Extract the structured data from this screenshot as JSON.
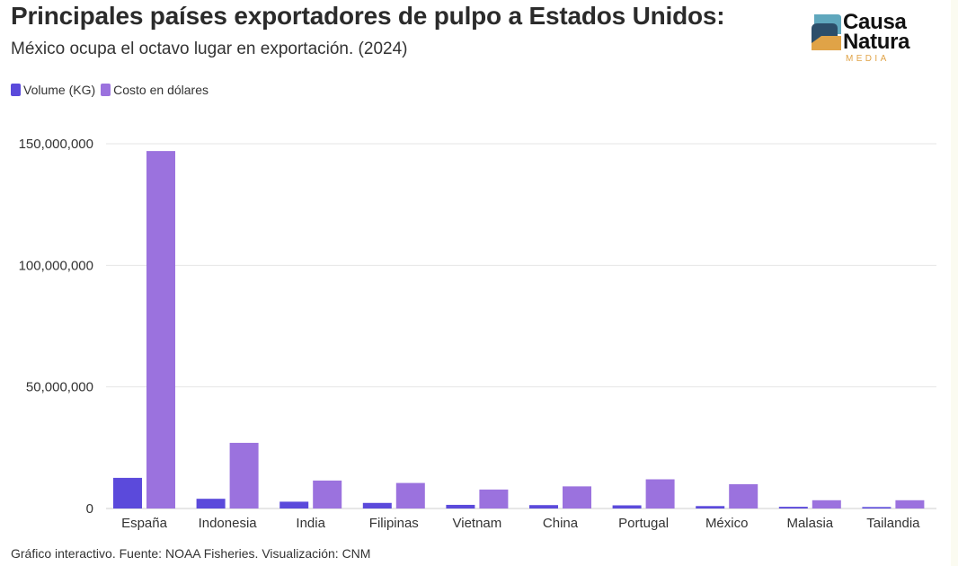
{
  "header": {
    "title": "Principales países exportadores de pulpo a Estados Unidos:",
    "subtitle": "México ocupa el octavo lugar en exportación. (2024)"
  },
  "logo": {
    "word1": "Causa",
    "word2": "Natura",
    "word3": "MEDIA",
    "colors": {
      "teal": "#5fa7bd",
      "navy": "#2c4e6a",
      "orange": "#e0a347"
    }
  },
  "footer": {
    "text": "Gráfico interactivo. Fuente: NOAA Fisheries. Visualización: CNM"
  },
  "colors": {
    "grid": "#e6e6e6",
    "axis": "#333333"
  },
  "chart_data": {
    "type": "bar",
    "title": "Principales países exportadores de pulpo a Estados Unidos:",
    "subtitle": "México ocupa el octavo lugar en exportación. (2024)",
    "xlabel": "",
    "ylabel": "",
    "ylim": [
      0,
      150000000
    ],
    "yticks": [
      0,
      50000000,
      100000000,
      150000000
    ],
    "ytick_labels": [
      "0",
      "50,000,000",
      "100,000,000",
      "150,000,000"
    ],
    "grid": true,
    "legend_position": "top-left",
    "categories": [
      "España",
      "Indonesia",
      "India",
      "Filipinas",
      "Vietnam",
      "China",
      "Portugal",
      "México",
      "Malasia",
      "Tailandia"
    ],
    "series": [
      {
        "name": "Volume (KG)",
        "color": "#5b4adb",
        "values": [
          12600000,
          4000000,
          2800000,
          2300000,
          1500000,
          1400000,
          1300000,
          1000000,
          700000,
          600000
        ]
      },
      {
        "name": "Costo en dólares",
        "color": "#9b72de",
        "values": [
          147000000,
          27000000,
          11500000,
          10500000,
          7800000,
          9100000,
          12000000,
          10000000,
          3400000,
          3400000
        ]
      }
    ]
  }
}
